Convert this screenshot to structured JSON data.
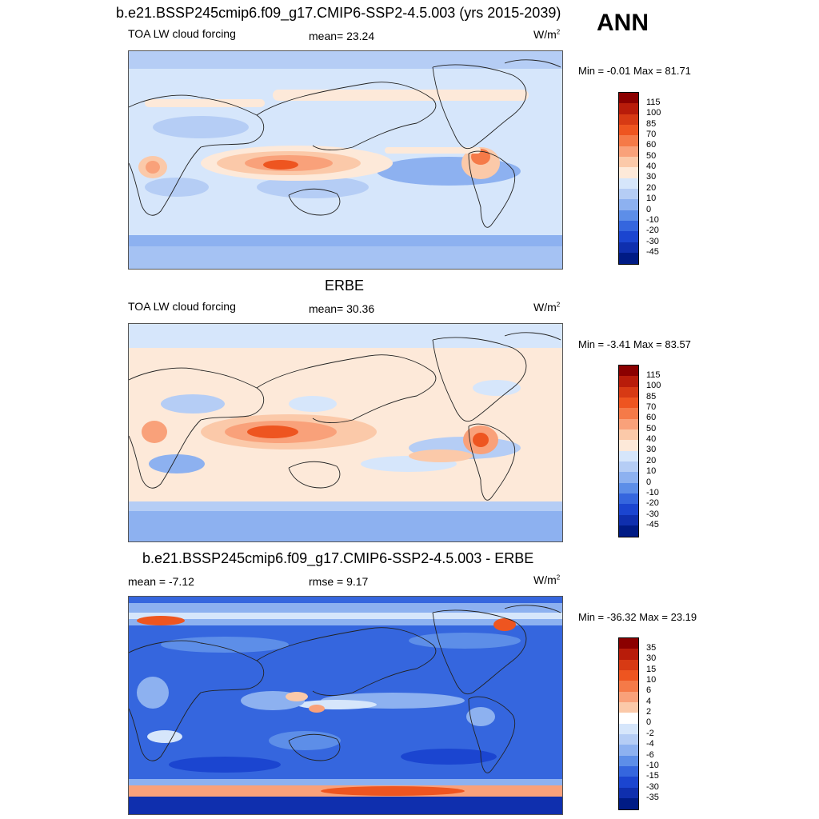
{
  "season": "ANN",
  "panels": [
    {
      "title": "b.e21.BSSP245cmip6.f09_g17.CMIP6-SSP2-4.5.003 (yrs 2015-2039)",
      "left_label": "TOA LW cloud forcing",
      "center_label": "mean=  23.24",
      "units": "W/m",
      "units_sup": "2",
      "minmax": "Min =  -0.01 Max =  81.71",
      "colorbar": {
        "labels": [
          "115",
          "100",
          "85",
          "70",
          "60",
          "50",
          "40",
          "30",
          "20",
          "10",
          "0",
          "-10",
          "-20",
          "-30",
          "-45"
        ],
        "colors": [
          "#8b0000",
          "#b81c0a",
          "#d73a14",
          "#ee5520",
          "#f57a48",
          "#f9a17a",
          "#fbc9a9",
          "#fde9d9",
          "#d6e6fb",
          "#b5cdf5",
          "#8db1f0",
          "#5d8ee8",
          "#3566de",
          "#1b45d0",
          "#0f2fae",
          "#001b85"
        ]
      }
    },
    {
      "title": "ERBE",
      "left_label": "TOA LW cloud forcing",
      "center_label": "mean=  30.36",
      "units": "W/m",
      "units_sup": "2",
      "minmax": "Min =  -3.41 Max =  83.57",
      "colorbar": {
        "labels": [
          "115",
          "100",
          "85",
          "70",
          "60",
          "50",
          "40",
          "30",
          "20",
          "10",
          "0",
          "-10",
          "-20",
          "-30",
          "-45"
        ],
        "colors": [
          "#8b0000",
          "#b81c0a",
          "#d73a14",
          "#ee5520",
          "#f57a48",
          "#f9a17a",
          "#fbc9a9",
          "#fde9d9",
          "#d6e6fb",
          "#b5cdf5",
          "#8db1f0",
          "#5d8ee8",
          "#3566de",
          "#1b45d0",
          "#0f2fae",
          "#001b85"
        ]
      }
    },
    {
      "title": "b.e21.BSSP245cmip6.f09_g17.CMIP6-SSP2-4.5.003 - ERBE",
      "left_label": "mean =  -7.12",
      "center_label": "rmse =   9.17",
      "units": "W/m",
      "units_sup": "2",
      "minmax": "Min = -36.32 Max =  23.19",
      "colorbar": {
        "labels": [
          "35",
          "30",
          "15",
          "10",
          "6",
          "4",
          "2",
          "0",
          "-2",
          "-4",
          "-6",
          "-10",
          "-15",
          "-30",
          "-35"
        ],
        "colors": [
          "#8b0000",
          "#b81c0a",
          "#d73a14",
          "#ee5520",
          "#f57a48",
          "#f9a17a",
          "#fbc9a9",
          "#ffffff",
          "#d6e6fb",
          "#b5cdf5",
          "#8db1f0",
          "#5d8ee8",
          "#3566de",
          "#1b45d0",
          "#0f2fae",
          "#001b85"
        ]
      }
    }
  ]
}
